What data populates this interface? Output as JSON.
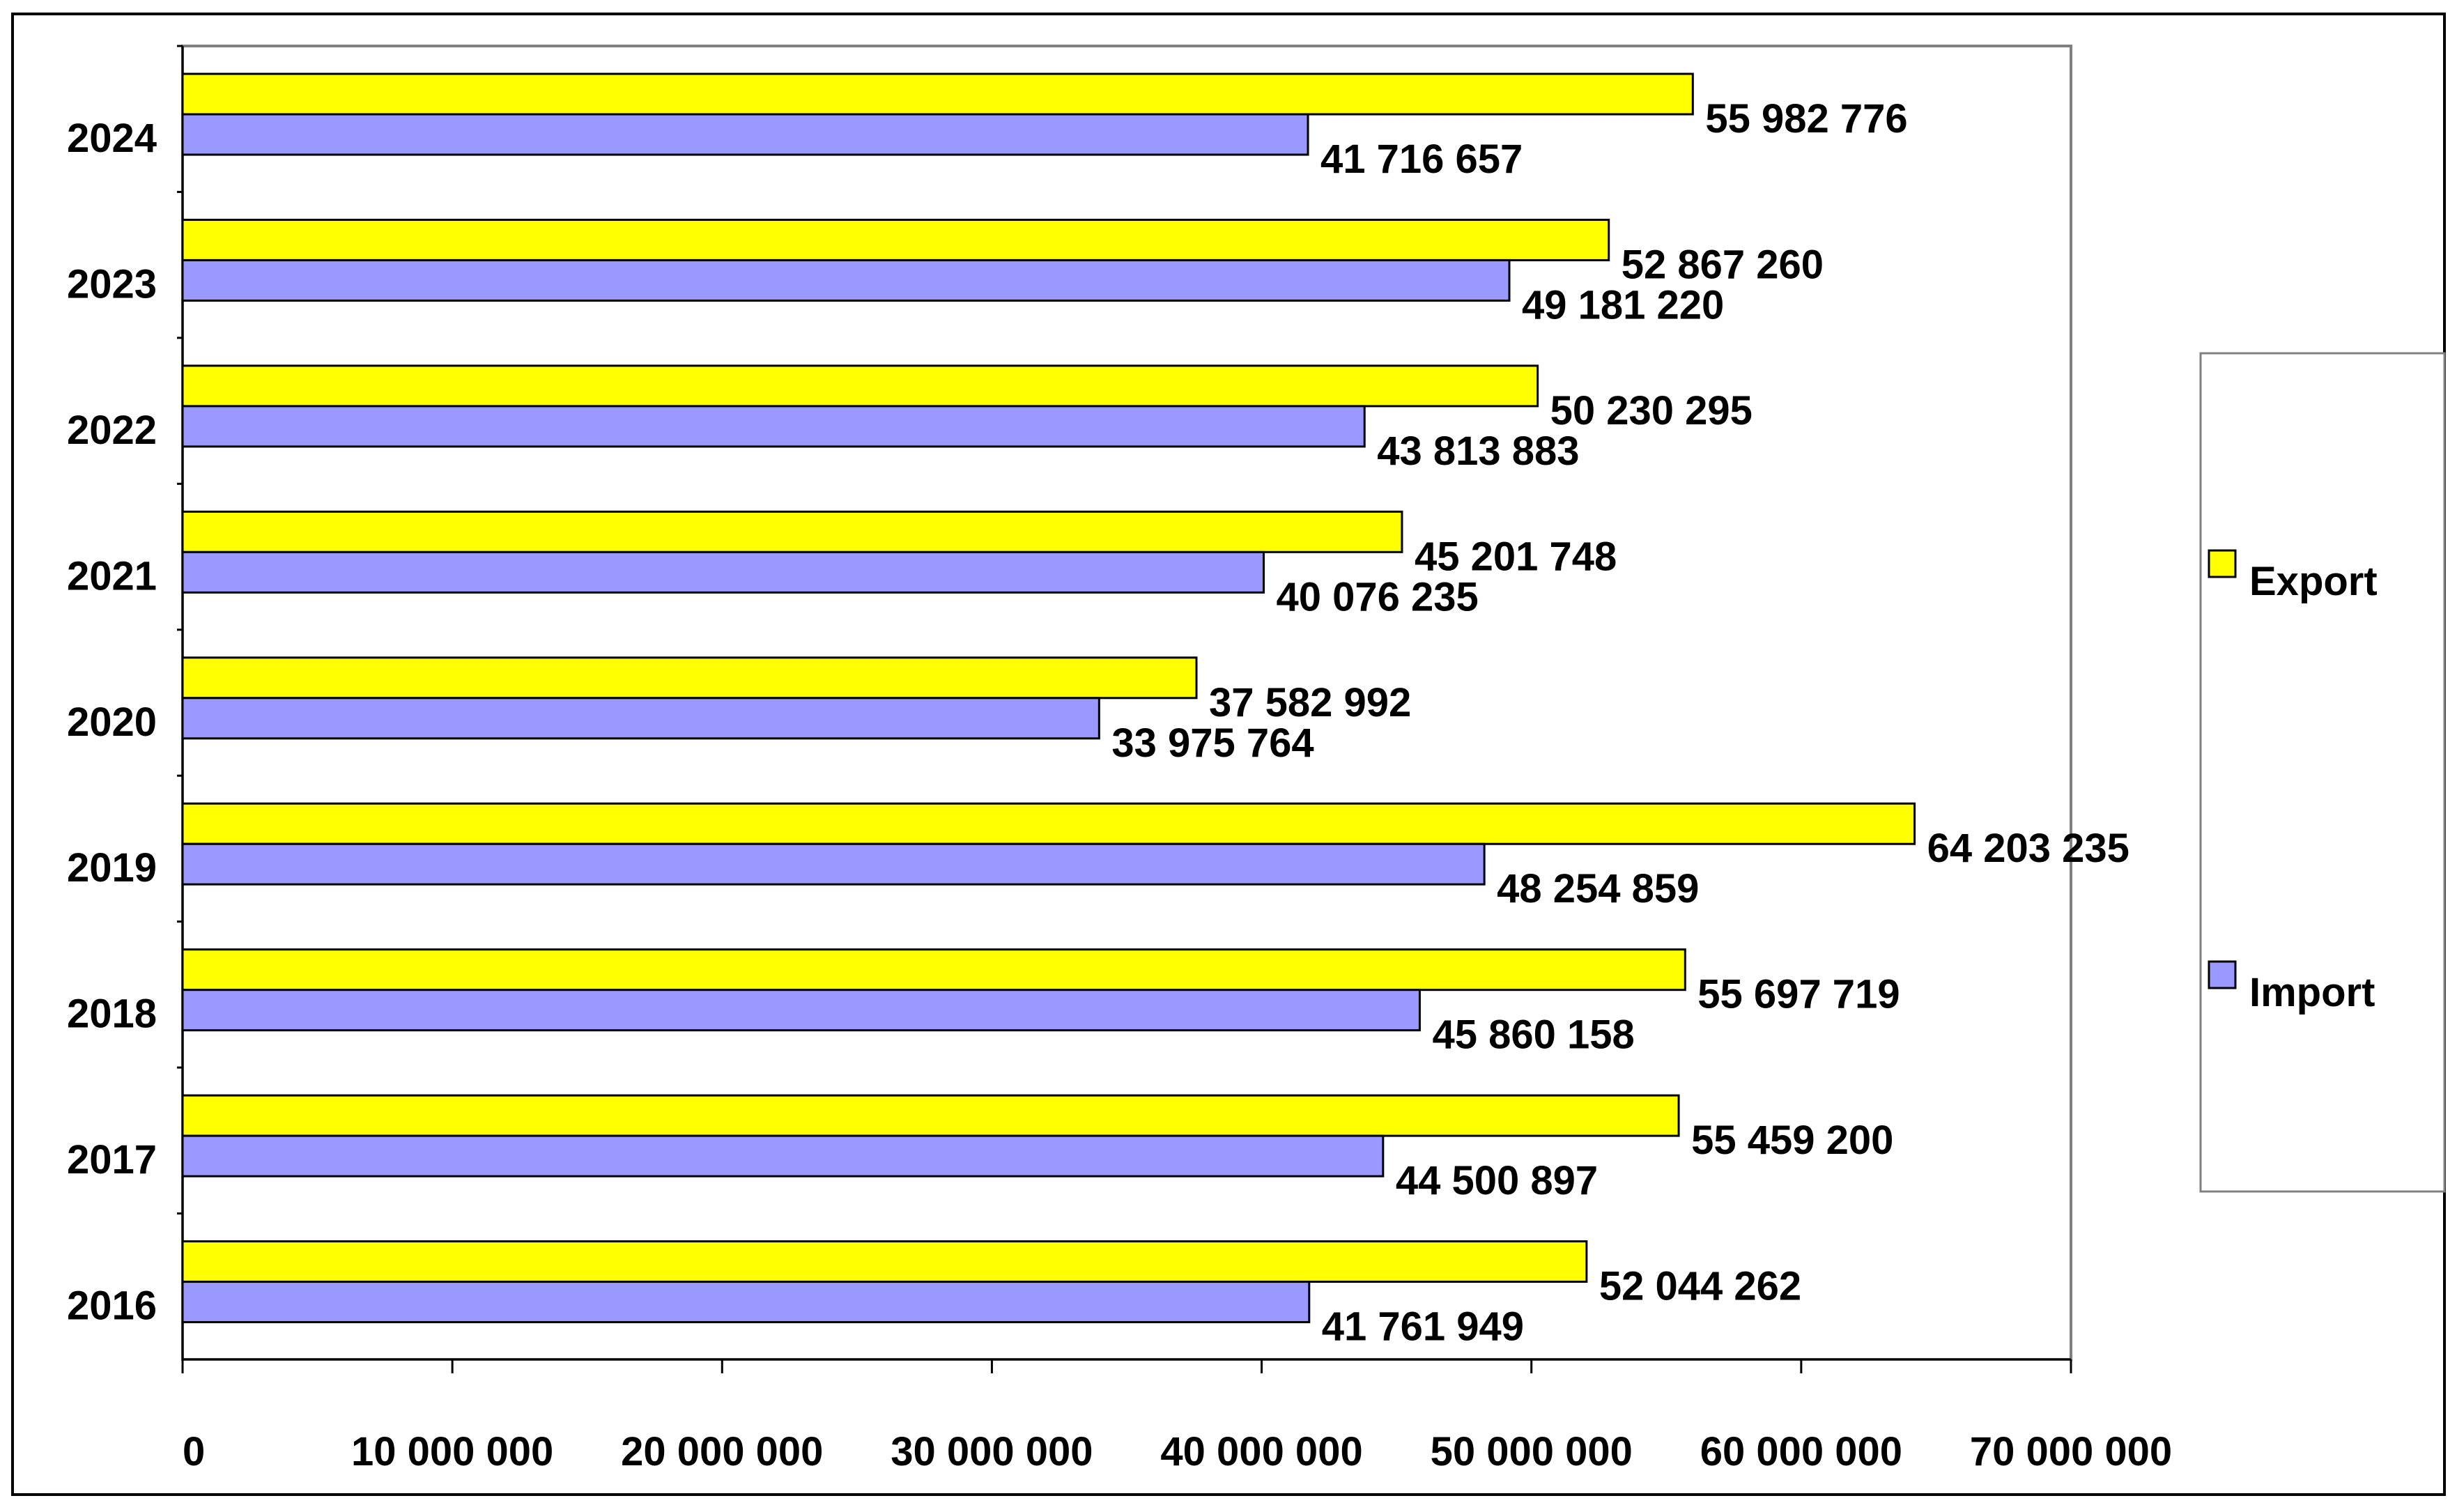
{
  "colors": {
    "export": "#FFFF00",
    "import": "#9999FF",
    "frame": "#000000",
    "plot_border": "#808080"
  },
  "chart_data": {
    "type": "bar",
    "orientation": "horizontal",
    "title": "",
    "xlabel": "",
    "ylabel": "",
    "categories": [
      "2016",
      "2017",
      "2018",
      "2019",
      "2020",
      "2021",
      "2022",
      "2023",
      "2024"
    ],
    "series": [
      {
        "name": "Export",
        "values": [
          52044262,
          55459200,
          55697719,
          64203235,
          37582992,
          45201748,
          50230295,
          52867260,
          55982776
        ],
        "labels": [
          "52 044 262",
          "55 459 200",
          "55 697 719",
          "64 203 235",
          "37 582 992",
          "45 201 748",
          "50 230 295",
          "52 867 260",
          "55 982 776"
        ]
      },
      {
        "name": "Import",
        "values": [
          41761949,
          44500897,
          45860158,
          48254859,
          33975764,
          40076235,
          43813883,
          49181220,
          41716657
        ],
        "labels": [
          "41 761 949",
          "44 500 897",
          "45 860 158",
          "48 254 859",
          "33 975 764",
          "40 076 235",
          "43 813 883",
          "49 181 220",
          "41 716 657"
        ]
      }
    ],
    "xlim": [
      0,
      70000000
    ],
    "x_ticks": [
      0,
      10000000,
      20000000,
      30000000,
      40000000,
      50000000,
      60000000,
      70000000
    ],
    "x_tick_labels": [
      "0",
      "10 000 000",
      "20 000 000",
      "30 000 000",
      "40 000 000",
      "50 000 000",
      "60 000 000",
      "70 000 000"
    ],
    "grid": false,
    "legend_position": "right",
    "legend": [
      {
        "label": "Export",
        "color": "#FFFF00"
      },
      {
        "label": "Import",
        "color": "#9999FF"
      }
    ]
  }
}
